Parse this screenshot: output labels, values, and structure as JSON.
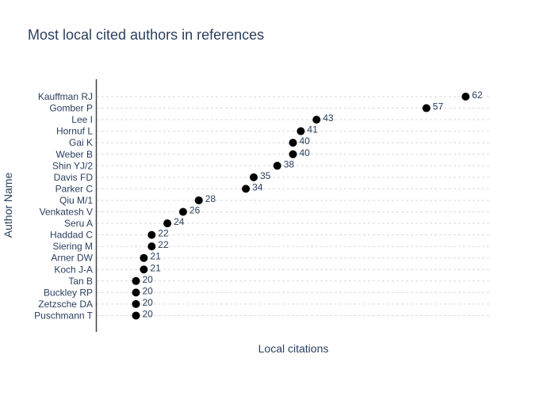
{
  "chart_data": {
    "type": "scatter",
    "title": "Most local cited authors in references",
    "xlabel": "Local citations",
    "ylabel": "Author Name",
    "xlim": [
      15,
      65
    ],
    "grid": "horizontal dashed",
    "marker_color": "#000000",
    "text_color": "#2a3f5f",
    "categories": [
      "Kauffman RJ",
      "Gomber P",
      "Lee I",
      "Hornuf L",
      "Gai K",
      "Weber B",
      "Shin YJ/2",
      "Davis FD",
      "Parker C",
      "Qiu M/1",
      "Venkatesh V",
      "Seru A",
      "Haddad C",
      "Siering M",
      "Arner DW",
      "Koch J-A",
      "Tan B",
      "Buckley RP",
      "Zetzsche DA",
      "Puschmann T"
    ],
    "values": [
      62,
      57,
      43,
      41,
      40,
      40,
      38,
      35,
      34,
      28,
      26,
      24,
      22,
      22,
      21,
      21,
      20,
      20,
      20,
      20
    ]
  }
}
